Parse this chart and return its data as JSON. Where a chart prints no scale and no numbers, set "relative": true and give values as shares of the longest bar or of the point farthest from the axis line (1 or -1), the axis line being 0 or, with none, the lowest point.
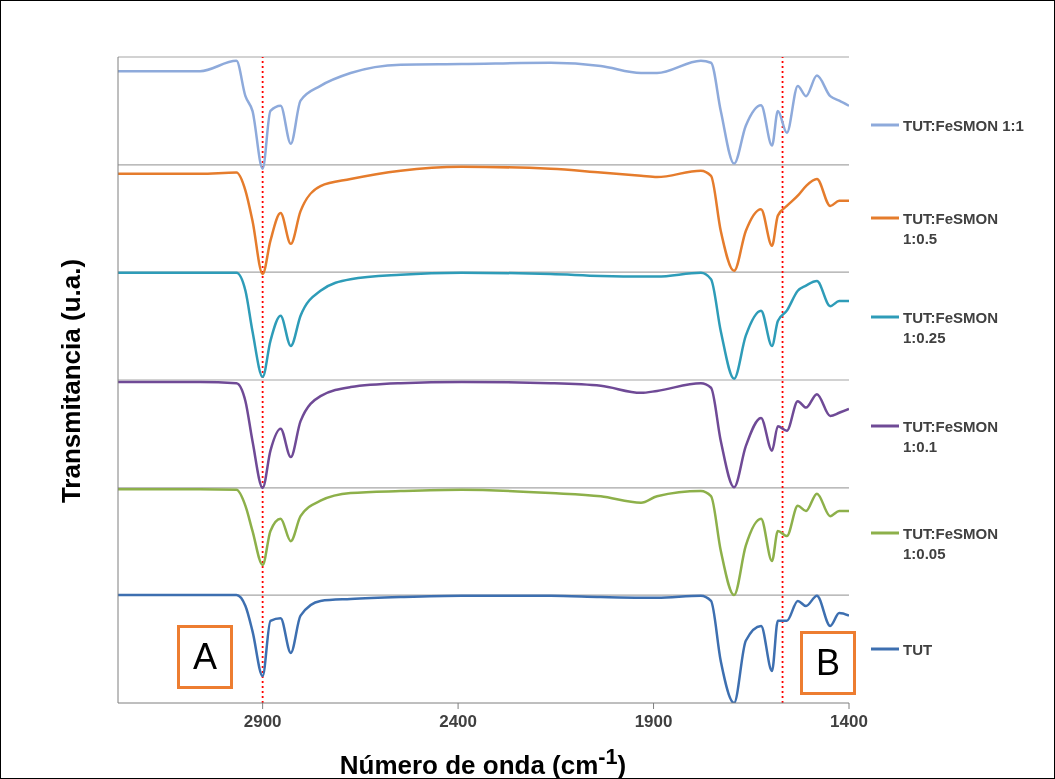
{
  "chart_data": {
    "type": "line",
    "relative": true,
    "xlabel": "Número de onda (cm$^{-1}$)",
    "ylabel": "Transmitancia (u.a.)",
    "x": [
      3270,
      3060,
      2967,
      2944,
      2926,
      2900,
      2880,
      2854,
      2828,
      2803,
      2752,
      2675,
      2547,
      2391,
      2163,
      2035,
      1932,
      1891,
      1779,
      1753,
      1728,
      1694,
      1664,
      1625,
      1597,
      1582,
      1559,
      1531,
      1510,
      1482,
      1448,
      1425,
      1400
    ],
    "xlim": [
      3270,
      1400
    ],
    "xticks": [
      2900,
      2400,
      1900,
      1400
    ],
    "legend": "right",
    "marker": "none",
    "line_style": "solid",
    "series": [
      {
        "name": "TUT:FeSMON 1:1",
        "color": "#8eaadb",
        "values": [
          0.984,
          0.984,
          1.0,
          0.945,
          0.922,
          0.832,
          0.922,
          0.93,
          0.871,
          0.938,
          0.961,
          0.981,
          0.994,
          0.995,
          0.997,
          0.992,
          0.981,
          0.981,
          1.0,
          0.997,
          0.922,
          0.84,
          0.899,
          0.931,
          0.868,
          0.922,
          0.888,
          0.961,
          0.945,
          0.977,
          0.945,
          0.938,
          0.93
        ]
      },
      {
        "name": "TUT:FeSMON 1:0.5",
        "color": "#e57c2c",
        "values": [
          0.824,
          0.824,
          0.826,
          0.798,
          0.751,
          0.668,
          0.72,
          0.763,
          0.715,
          0.766,
          0.805,
          0.816,
          0.829,
          0.835,
          0.832,
          0.826,
          0.821,
          0.819,
          0.829,
          0.821,
          0.735,
          0.673,
          0.735,
          0.769,
          0.712,
          0.759,
          0.774,
          0.79,
          0.805,
          0.816,
          0.774,
          0.782,
          0.782
        ]
      },
      {
        "name": "TUT:FeSMON 1:0.25",
        "color": "#2e9cb8",
        "values": [
          0.67,
          0.67,
          0.67,
          0.642,
          0.579,
          0.508,
          0.564,
          0.603,
          0.556,
          0.603,
          0.642,
          0.66,
          0.667,
          0.67,
          0.668,
          0.665,
          0.664,
          0.664,
          0.67,
          0.66,
          0.579,
          0.505,
          0.572,
          0.611,
          0.556,
          0.595,
          0.611,
          0.642,
          0.65,
          0.657,
          0.618,
          0.626,
          0.626
        ]
      },
      {
        "name": "TUT:FeSMON 1:0.1",
        "color": "#6f4a96",
        "values": [
          0.5,
          0.5,
          0.498,
          0.47,
          0.408,
          0.335,
          0.393,
          0.427,
          0.383,
          0.439,
          0.478,
          0.492,
          0.498,
          0.5,
          0.498,
          0.494,
          0.483,
          0.486,
          0.498,
          0.491,
          0.408,
          0.336,
          0.4,
          0.444,
          0.393,
          0.431,
          0.424,
          0.47,
          0.46,
          0.481,
          0.447,
          0.452,
          0.458
        ]
      },
      {
        "name": "TUT:FeSMON 1:0.05",
        "color": "#8db04a",
        "values": [
          0.333,
          0.333,
          0.332,
          0.307,
          0.268,
          0.215,
          0.268,
          0.287,
          0.252,
          0.291,
          0.315,
          0.327,
          0.33,
          0.332,
          0.327,
          0.322,
          0.312,
          0.322,
          0.33,
          0.322,
          0.237,
          0.168,
          0.245,
          0.287,
          0.221,
          0.268,
          0.26,
          0.307,
          0.299,
          0.326,
          0.291,
          0.299,
          0.299
        ]
      },
      {
        "name": "TUT",
        "color": "#3d6fb0",
        "values": [
          0.168,
          0.168,
          0.168,
          0.151,
          0.112,
          0.042,
          0.128,
          0.132,
          0.078,
          0.136,
          0.159,
          0.162,
          0.165,
          0.167,
          0.167,
          0.165,
          0.164,
          0.164,
          0.167,
          0.159,
          0.065,
          0,
          0.097,
          0.12,
          0.05,
          0.128,
          0.128,
          0.159,
          0.151,
          0.167,
          0.12,
          0.14,
          0.136
        ]
      }
    ],
    "ref_lines": [
      {
        "axis": "y",
        "value": 0.168,
        "color": "#a6a6a6"
      },
      {
        "axis": "y",
        "value": 0.335,
        "color": "#a6a6a6"
      },
      {
        "axis": "y",
        "value": 0.503,
        "color": "#a6a6a6"
      },
      {
        "axis": "y",
        "value": 0.671,
        "color": "#a6a6a6"
      },
      {
        "axis": "y",
        "value": 0.838,
        "color": "#a6a6a6"
      },
      {
        "axis": "y",
        "value": 1.006,
        "color": "#a6a6a6"
      },
      {
        "axis": "x",
        "value": 2900,
        "color": "#ff0000",
        "line_style": "dotted"
      },
      {
        "axis": "x",
        "value": 1570,
        "color": "#ff0000",
        "line_style": "dotted"
      }
    ],
    "annotations": [
      "A",
      "B"
    ]
  }
}
